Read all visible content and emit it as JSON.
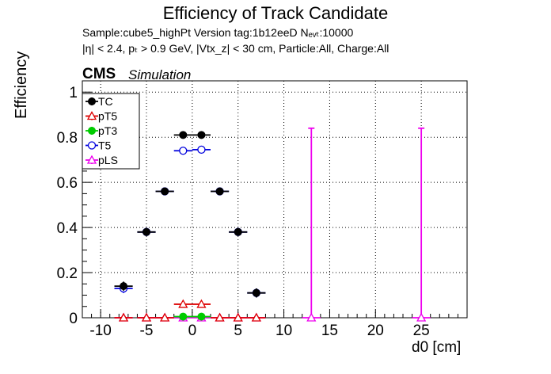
{
  "header": {
    "title": "Efficiency of Track Candidate",
    "info_line1": "Sample:cube5_highPt   Version tag:1b12eeD  Nₑᵥₜ:10000",
    "info_line2": "|η| < 2.4, pₜ > 0.9 GeV, |Vtx_z| < 30 cm, Particle:All, Charge:All",
    "cms_label": "CMS",
    "sim_label": "Simulation"
  },
  "chart_data": {
    "type": "scatter",
    "xlabel": "d0 [cm]",
    "ylabel": "Efficiency",
    "xlim": [
      -12,
      30
    ],
    "ylim": [
      0,
      1.05
    ],
    "xticks": [
      -10,
      -5,
      0,
      5,
      10,
      15,
      20,
      25
    ],
    "yticks": [
      0,
      0.2,
      0.4,
      0.6,
      0.8,
      1
    ],
    "grid": true,
    "legend_position": "top-left",
    "series": [
      {
        "name": "TC",
        "color": "#000000",
        "marker": "filled-circle",
        "points": [
          {
            "x": -7.5,
            "y": 0.14,
            "xerr": 1,
            "yerr": 0.02
          },
          {
            "x": -5,
            "y": 0.38,
            "xerr": 1,
            "yerr": 0.01
          },
          {
            "x": -3,
            "y": 0.56,
            "xerr": 1,
            "yerr": 0.01
          },
          {
            "x": -1,
            "y": 0.81,
            "xerr": 1,
            "yerr": 0.01
          },
          {
            "x": 1,
            "y": 0.81,
            "xerr": 1,
            "yerr": 0.01
          },
          {
            "x": 3,
            "y": 0.56,
            "xerr": 1,
            "yerr": 0.01
          },
          {
            "x": 5,
            "y": 0.38,
            "xerr": 1,
            "yerr": 0.01
          },
          {
            "x": 7,
            "y": 0.11,
            "xerr": 1,
            "yerr": 0.02
          }
        ]
      },
      {
        "name": "pT5",
        "color": "#dd0000",
        "marker": "open-triangle",
        "points": [
          {
            "x": -7.5,
            "y": 0.0,
            "xerr": 1,
            "yerr": 0
          },
          {
            "x": -5,
            "y": 0.0,
            "xerr": 1,
            "yerr": 0
          },
          {
            "x": -3,
            "y": 0.0,
            "xerr": 1,
            "yerr": 0
          },
          {
            "x": -1,
            "y": 0.06,
            "xerr": 1,
            "yerr": 0.005
          },
          {
            "x": 1,
            "y": 0.06,
            "xerr": 1,
            "yerr": 0.005
          },
          {
            "x": 3,
            "y": 0.0,
            "xerr": 1,
            "yerr": 0
          },
          {
            "x": 5,
            "y": 0.0,
            "xerr": 1,
            "yerr": 0
          },
          {
            "x": 7,
            "y": 0.0,
            "xerr": 1,
            "yerr": 0
          }
        ]
      },
      {
        "name": "pT3",
        "color": "#00cc00",
        "marker": "filled-circle",
        "points": [
          {
            "x": -1,
            "y": 0.005,
            "xerr": 1,
            "yerr": 0
          },
          {
            "x": 1,
            "y": 0.005,
            "xerr": 1,
            "yerr": 0
          }
        ]
      },
      {
        "name": "T5",
        "color": "#0000dd",
        "marker": "open-circle",
        "points": [
          {
            "x": -7.5,
            "y": 0.13,
            "xerr": 1,
            "yerr": 0.02
          },
          {
            "x": -5,
            "y": 0.38,
            "xerr": 1,
            "yerr": 0.01
          },
          {
            "x": -3,
            "y": 0.56,
            "xerr": 1,
            "yerr": 0.01
          },
          {
            "x": -1,
            "y": 0.74,
            "xerr": 1,
            "yerr": 0.01
          },
          {
            "x": 1,
            "y": 0.745,
            "xerr": 1,
            "yerr": 0.01
          },
          {
            "x": 3,
            "y": 0.56,
            "xerr": 1,
            "yerr": 0.01
          },
          {
            "x": 5,
            "y": 0.38,
            "xerr": 1,
            "yerr": 0.01
          },
          {
            "x": 7,
            "y": 0.11,
            "xerr": 1,
            "yerr": 0.02
          }
        ]
      },
      {
        "name": "pLS",
        "color": "#ee00ee",
        "marker": "open-triangle",
        "points": [
          {
            "x": -7.5,
            "y": 0.0,
            "xerr": 1,
            "yerr": 0
          },
          {
            "x": -5,
            "y": 0.0,
            "xerr": 1,
            "yerr": 0
          },
          {
            "x": -3,
            "y": 0.0,
            "xerr": 1,
            "yerr": 0
          },
          {
            "x": -1,
            "y": 0.0,
            "xerr": 1,
            "yerr": 0
          },
          {
            "x": 1,
            "y": 0.0,
            "xerr": 1,
            "yerr": 0
          },
          {
            "x": 3,
            "y": 0.0,
            "xerr": 1,
            "yerr": 0
          },
          {
            "x": 5,
            "y": 0.0,
            "xerr": 1,
            "yerr": 0
          },
          {
            "x": 7,
            "y": 0.0,
            "xerr": 1,
            "yerr": 0
          },
          {
            "x": 13,
            "y": 0.0,
            "xerr": 1,
            "yerr": 0.0,
            "yerr_hi": 0.84
          },
          {
            "x": 25,
            "y": 0.0,
            "xerr": 1,
            "yerr": 0.0,
            "yerr_hi": 0.84
          }
        ]
      }
    ]
  }
}
